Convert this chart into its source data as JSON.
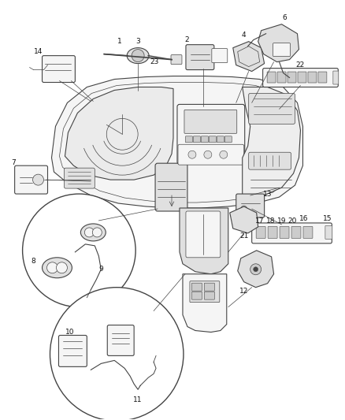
{
  "background_color": "#ffffff",
  "fig_width": 4.38,
  "fig_height": 5.33,
  "dpi": 100,
  "line_color": "#444444",
  "label_fontsize": 6.5,
  "label_color": "#111111"
}
